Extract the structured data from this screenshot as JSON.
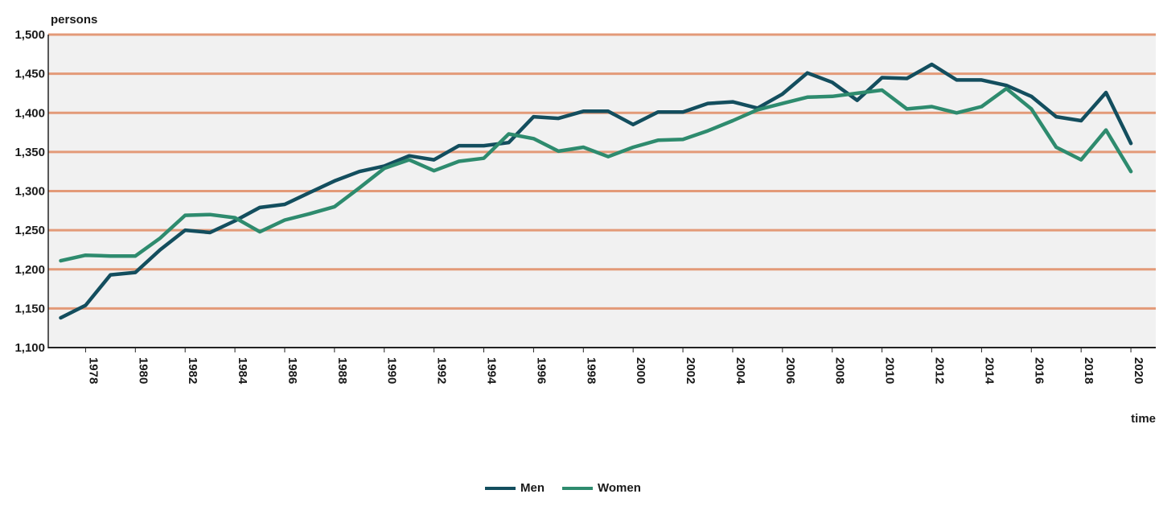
{
  "chart_data": {
    "type": "line",
    "ylabel": "persons",
    "xlabel": "time",
    "ylim": [
      1100,
      1500
    ],
    "xlim": [
      1976.5,
      2021
    ],
    "yticks": [
      1100,
      1150,
      1200,
      1250,
      1300,
      1350,
      1400,
      1450,
      1500
    ],
    "ytick_labels": [
      "1,100",
      "1,150",
      "1,200",
      "1,250",
      "1,300",
      "1,350",
      "1,400",
      "1,450",
      "1,500"
    ],
    "xticks": [
      1978,
      1980,
      1982,
      1984,
      1986,
      1988,
      1990,
      1992,
      1994,
      1996,
      1998,
      2000,
      2002,
      2004,
      2006,
      2008,
      2010,
      2012,
      2014,
      2016,
      2018,
      2020
    ],
    "xtick_labels": [
      "1978",
      "1980",
      "1982",
      "1984",
      "1986",
      "1988",
      "1990",
      "1992",
      "1994",
      "1996",
      "1998",
      "2000",
      "2002",
      "2004",
      "2006",
      "2008",
      "2010",
      "2012",
      "2014",
      "2016",
      "2018",
      "2020"
    ],
    "x": [
      1977,
      1978,
      1979,
      1980,
      1981,
      1982,
      1983,
      1984,
      1985,
      1986,
      1987,
      1988,
      1989,
      1990,
      1991,
      1992,
      1993,
      1994,
      1995,
      1996,
      1997,
      1998,
      1999,
      2000,
      2001,
      2002,
      2003,
      2004,
      2005,
      2006,
      2007,
      2008,
      2009,
      2010,
      2011,
      2012,
      2013,
      2014,
      2015,
      2016,
      2017,
      2018,
      2019,
      2020
    ],
    "series": [
      {
        "name": "Men",
        "color": "#134e5e",
        "values": [
          1138,
          1154,
          1193,
          1196,
          1225,
          1250,
          1247,
          1262,
          1279,
          1283,
          1298,
          1313,
          1325,
          1332,
          1345,
          1340,
          1358,
          1358,
          1362,
          1395,
          1393,
          1402,
          1402,
          1385,
          1401,
          1401,
          1412,
          1414,
          1406,
          1424,
          1451,
          1439,
          1416,
          1445,
          1444,
          1462,
          1442,
          1442,
          1435,
          1421,
          1395,
          1390,
          1426,
          1361
        ]
      },
      {
        "name": "Women",
        "color": "#2e8b6e",
        "values": [
          1211,
          1218,
          1217,
          1217,
          1240,
          1269,
          1270,
          1266,
          1248,
          1263,
          1271,
          1280,
          1304,
          1329,
          1340,
          1326,
          1338,
          1342,
          1373,
          1367,
          1351,
          1356,
          1344,
          1356,
          1365,
          1366,
          1377,
          1390,
          1404,
          1412,
          1420,
          1421,
          1425,
          1429,
          1405,
          1408,
          1400,
          1408,
          1431,
          1405,
          1356,
          1340,
          1378,
          1325
        ]
      }
    ],
    "grid": true,
    "legend_position": "bottom"
  }
}
